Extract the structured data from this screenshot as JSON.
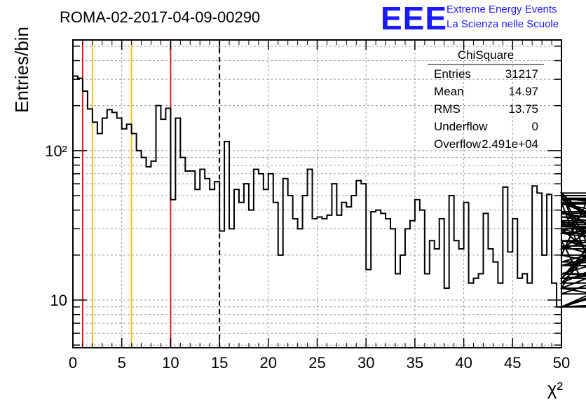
{
  "title": "ROMA-02-2017-04-09-00290",
  "logo": {
    "mark": "EEE",
    "line1": "Extreme Energy Events",
    "line2": "La Scienza nelle Scuole"
  },
  "stats": {
    "name": "ChiSquare",
    "rows": [
      {
        "label": "Entries",
        "value": "31217"
      },
      {
        "label": "Mean",
        "value": "14.97"
      },
      {
        "label": "RMS",
        "value": "13.75"
      },
      {
        "label": "Underflow",
        "value": "0"
      },
      {
        "label": "Overflow",
        "value": "2.491e+04"
      }
    ]
  },
  "colors": {
    "red_line": "#d42020",
    "yellow_line": "#f2c21b",
    "grid": "#9a9a9a",
    "hist": "#000000"
  },
  "chart_data": {
    "type": "histogram",
    "xlabel": "χ²",
    "ylabel": "Entries/bin",
    "xlim": [
      0,
      50
    ],
    "ylim": [
      4.8,
      550
    ],
    "log_y": true,
    "grid": true,
    "x_ticks": [
      0,
      5,
      10,
      15,
      20,
      25,
      30,
      35,
      40,
      45,
      50
    ],
    "y_tick_labels": [
      {
        "value": 10,
        "label": "10"
      },
      {
        "value": 100,
        "label": "10²"
      }
    ],
    "bin_width": 0.5,
    "bin_start": 0,
    "values": [
      315,
      305,
      250,
      190,
      155,
      130,
      165,
      188,
      180,
      165,
      140,
      150,
      130,
      100,
      90,
      78,
      85,
      200,
      162,
      192,
      47,
      165,
      90,
      73,
      73,
      55,
      75,
      65,
      55,
      62,
      29,
      115,
      30,
      55,
      45,
      60,
      40,
      75,
      70,
      55,
      70,
      45,
      20,
      65,
      50,
      35,
      30,
      50,
      75,
      35,
      36,
      35,
      37,
      60,
      37,
      45,
      42,
      50,
      63,
      60,
      16,
      39,
      40,
      38,
      35,
      30,
      15,
      20,
      30,
      34,
      47,
      40,
      15,
      25,
      22,
      35,
      12,
      50,
      25,
      22,
      45,
      13,
      14,
      15,
      38,
      22,
      18,
      13,
      57,
      21,
      35,
      14,
      15,
      13,
      58,
      52,
      20,
      51,
      13,
      9,
      43,
      45,
      45,
      25,
      14,
      20,
      52,
      14,
      28,
      52,
      12,
      47,
      30,
      13,
      38,
      32,
      22,
      50,
      15,
      14,
      52,
      12,
      9,
      15,
      25,
      17,
      22,
      39,
      14,
      17,
      33,
      12,
      31,
      28,
      36,
      25,
      20,
      11,
      30,
      13,
      48,
      34,
      9,
      28,
      18,
      44,
      23,
      9,
      45,
      9,
      11,
      11
    ],
    "vertical_lines": [
      {
        "x": 1,
        "style": "red"
      },
      {
        "x": 2,
        "style": "yellow"
      },
      {
        "x": 6,
        "style": "yellow"
      },
      {
        "x": 10,
        "style": "red"
      },
      {
        "x": 15,
        "style": "dashed"
      }
    ]
  }
}
